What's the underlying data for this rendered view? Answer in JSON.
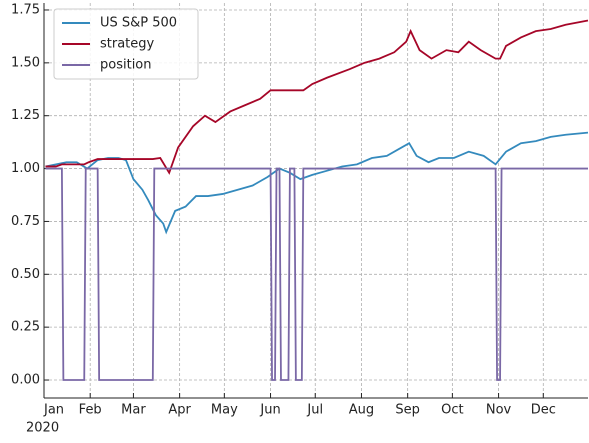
{
  "chart_data": {
    "type": "line",
    "xlim": [
      0,
      365
    ],
    "ylim": [
      -0.085,
      1.783
    ],
    "xticks": [
      {
        "value": 0,
        "label": "Jan"
      },
      {
        "value": 31,
        "label": "Feb"
      },
      {
        "value": 60,
        "label": "Mar"
      },
      {
        "value": 91,
        "label": "Apr"
      },
      {
        "value": 121,
        "label": "May"
      },
      {
        "value": 152,
        "label": "Jun"
      },
      {
        "value": 182,
        "label": "Jul"
      },
      {
        "value": 213,
        "label": "Aug"
      },
      {
        "value": 244,
        "label": "Sep"
      },
      {
        "value": 274,
        "label": "Oct"
      },
      {
        "value": 305,
        "label": "Nov"
      },
      {
        "value": 335,
        "label": "Dec"
      }
    ],
    "x_year": "2020",
    "yticks": [
      {
        "value": 0,
        "label": "0.00"
      },
      {
        "value": 0.25,
        "label": "0.25"
      },
      {
        "value": 0.5,
        "label": "0.50"
      },
      {
        "value": 0.75,
        "label": "0.75"
      },
      {
        "value": 1,
        "label": "1.00"
      },
      {
        "value": 1.25,
        "label": "1.25"
      },
      {
        "value": 1.5,
        "label": "1.50"
      },
      {
        "value": 1.75,
        "label": "1.75"
      }
    ],
    "grid": true,
    "legend": "upper left",
    "series": [
      {
        "name": "US S&P 500",
        "color": "#348abd",
        "x": [
          1,
          8,
          15,
          22,
          29,
          36,
          43,
          50,
          55,
          60,
          66,
          70,
          75,
          80,
          82,
          88,
          95,
          102,
          110,
          120,
          130,
          140,
          150,
          158,
          165,
          172,
          180,
          190,
          200,
          210,
          220,
          230,
          240,
          245,
          250,
          258,
          265,
          275,
          285,
          295,
          303,
          310,
          320,
          330,
          340,
          350,
          365
        ],
        "values": [
          1.01,
          1.02,
          1.03,
          1.03,
          1.0,
          1.04,
          1.05,
          1.05,
          1.04,
          0.95,
          0.9,
          0.85,
          0.78,
          0.74,
          0.7,
          0.8,
          0.82,
          0.87,
          0.87,
          0.88,
          0.9,
          0.92,
          0.96,
          1.0,
          0.98,
          0.95,
          0.97,
          0.99,
          1.01,
          1.02,
          1.05,
          1.06,
          1.1,
          1.12,
          1.06,
          1.03,
          1.05,
          1.05,
          1.08,
          1.06,
          1.02,
          1.08,
          1.12,
          1.13,
          1.15,
          1.16,
          1.17
        ]
      },
      {
        "name": "strategy",
        "color": "#a60628",
        "x": [
          1,
          8,
          12,
          27,
          30,
          36,
          73,
          78,
          84,
          90,
          100,
          108,
          115,
          125,
          135,
          145,
          152,
          174,
          180,
          190,
          205,
          215,
          225,
          235,
          243,
          246,
          252,
          260,
          270,
          278,
          285,
          293,
          303,
          306,
          310,
          320,
          330,
          340,
          350,
          365
        ],
        "values": [
          1.01,
          1.01,
          1.02,
          1.02,
          1.03,
          1.045,
          1.045,
          1.05,
          0.98,
          1.1,
          1.2,
          1.25,
          1.22,
          1.27,
          1.3,
          1.33,
          1.37,
          1.37,
          1.4,
          1.43,
          1.47,
          1.5,
          1.52,
          1.55,
          1.6,
          1.65,
          1.56,
          1.52,
          1.56,
          1.55,
          1.6,
          1.56,
          1.52,
          1.52,
          1.58,
          1.62,
          1.65,
          1.66,
          1.68,
          1.7
        ]
      },
      {
        "name": "position",
        "color": "#7a68a6",
        "x": [
          1,
          12,
          13,
          27,
          28,
          36,
          37,
          73,
          74,
          152,
          153,
          155,
          156,
          158,
          159,
          164,
          165,
          168,
          169,
          173,
          174,
          303,
          304,
          306,
          307,
          365
        ],
        "values": [
          1,
          1,
          0,
          0,
          1,
          1,
          0,
          0,
          1,
          1,
          0,
          0,
          1,
          1,
          0,
          0,
          1,
          1,
          0,
          0,
          1,
          1,
          0,
          0,
          1,
          1
        ]
      }
    ]
  }
}
